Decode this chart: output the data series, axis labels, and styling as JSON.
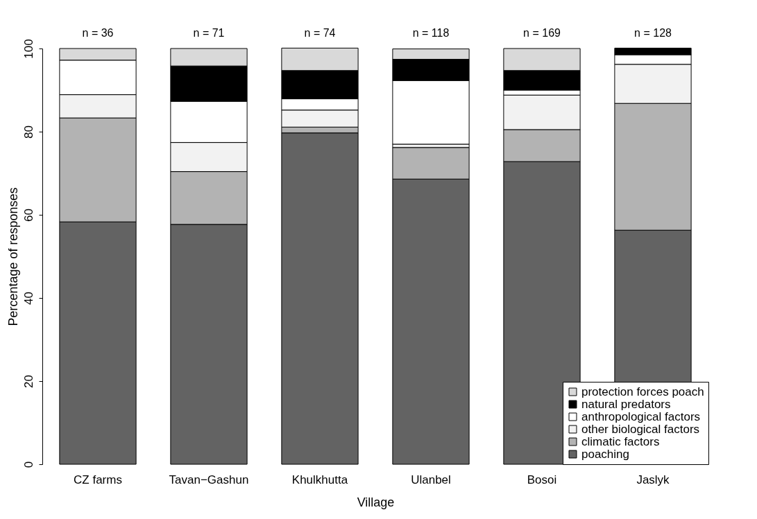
{
  "chart_data": {
    "type": "bar",
    "stacked": true,
    "xlabel": "Village",
    "ylabel": "Percentage of responses",
    "categories": [
      "CZ farms",
      "Tavan−Gashun",
      "Khulkhutta",
      "Ulanbel",
      "Bosoi",
      "Jaslyk"
    ],
    "series": [
      {
        "name": "poaching",
        "color": "#636363",
        "values": [
          58.3,
          57.7,
          79.7,
          68.6,
          72.8,
          56.3
        ]
      },
      {
        "name": "climatic factors",
        "color": "#b3b3b3",
        "values": [
          25.0,
          12.7,
          1.4,
          7.6,
          7.7,
          30.5
        ]
      },
      {
        "name": "other biological factors",
        "color": "#f2f2f2",
        "values": [
          5.6,
          7.0,
          4.1,
          0.8,
          8.3,
          9.4
        ]
      },
      {
        "name": "anthropological factors",
        "color": "#ffffff",
        "values": [
          8.3,
          9.9,
          2.7,
          15.3,
          1.2,
          2.3
        ]
      },
      {
        "name": "natural predators",
        "color": "#000000",
        "values": [
          0,
          8.5,
          6.8,
          5.1,
          4.7,
          1.6
        ]
      },
      {
        "name": "protection forces poach",
        "color": "#d9d9d9",
        "values": [
          2.8,
          4.2,
          5.4,
          2.5,
          5.3,
          0
        ]
      }
    ],
    "ylim": [
      0,
      100
    ],
    "yticks": [
      0,
      20,
      40,
      60,
      80,
      100
    ],
    "grid": false,
    "legend": "bottom right",
    "annotations": [
      "n = 36",
      "n = 71",
      "n = 74",
      "n = 118",
      "n = 169",
      "n = 128"
    ]
  }
}
